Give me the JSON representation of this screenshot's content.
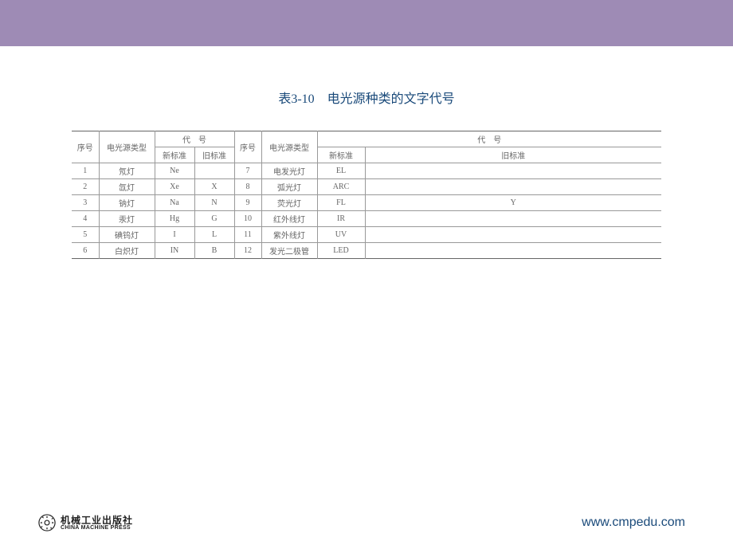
{
  "page": {
    "title": "表3-10　电光源种类的文字代号",
    "title_color": "#1a4a7a",
    "topbar_color": "#9e8bb5"
  },
  "table": {
    "headers": {
      "seq": "序号",
      "type": "电光源类型",
      "code_group": "代　号",
      "new_std": "新标准",
      "old_std": "旧标准"
    },
    "rows_left": [
      {
        "seq": "1",
        "type": "氖灯",
        "new": "Ne",
        "old": ""
      },
      {
        "seq": "2",
        "type": "氙灯",
        "new": "Xe",
        "old": "X"
      },
      {
        "seq": "3",
        "type": "钠灯",
        "new": "Na",
        "old": "N"
      },
      {
        "seq": "4",
        "type": "汞灯",
        "new": "Hg",
        "old": "G"
      },
      {
        "seq": "5",
        "type": "碘钨灯",
        "new": "I",
        "old": "L"
      },
      {
        "seq": "6",
        "type": "白炽灯",
        "new": "IN",
        "old": "B"
      }
    ],
    "rows_right": [
      {
        "seq": "7",
        "type": "电发光灯",
        "new": "EL",
        "old": ""
      },
      {
        "seq": "8",
        "type": "弧光灯",
        "new": "ARC",
        "old": ""
      },
      {
        "seq": "9",
        "type": "荧光灯",
        "new": "FL",
        "old": "Y"
      },
      {
        "seq": "10",
        "type": "红外线灯",
        "new": "IR",
        "old": ""
      },
      {
        "seq": "11",
        "type": "紫外线灯",
        "new": "UV",
        "old": ""
      },
      {
        "seq": "12",
        "type": "发光二极管",
        "new": "LED",
        "old": ""
      }
    ],
    "col_widths": {
      "left_seq": 34,
      "left_type": 70,
      "left_new": 50,
      "left_old": 50,
      "right_seq": 34,
      "right_type": 70,
      "right_new": 60,
      "right_old": 372
    }
  },
  "footer": {
    "publisher_cn": "机械工业出版社",
    "publisher_en": "CHINA MACHINE PRESS",
    "website": "www.cmpedu.com",
    "website_color": "#1a4a7a"
  }
}
